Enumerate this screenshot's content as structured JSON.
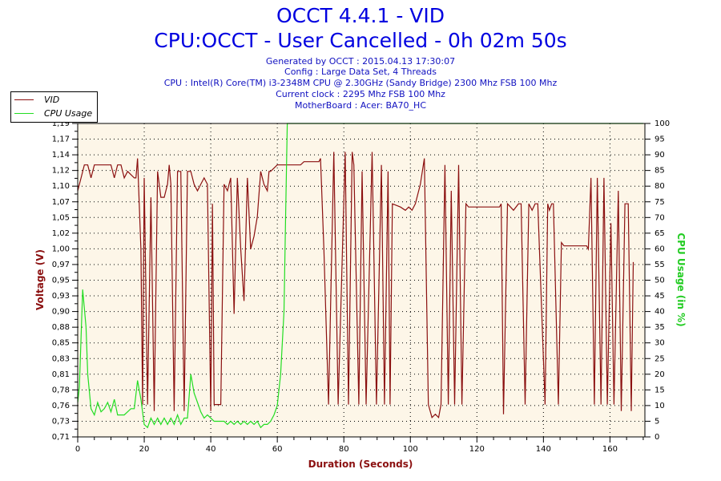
{
  "header": {
    "title": "OCCT 4.4.1 - VID",
    "subtitle": "CPU:OCCT - User Cancelled - 0h 02m 50s",
    "generated": "Generated by OCCT : 2015.04.13 17:30:07",
    "config": "Config : Large Data Set, 4 Threads",
    "cpu": "CPU : Intel(R) Core(TM) i3-2348M CPU @ 2.30GHz (Sandy Bridge) 2300 Mhz FSB 100 Mhz",
    "clock": "Current clock : 2295 Mhz FSB 100 Mhz",
    "motherboard": "MotherBoard : Acer: BA70_HC"
  },
  "colors": {
    "vid": "#8b1010",
    "cpu": "#22dd22",
    "plot_bg": "#fdf6e8",
    "title": "#0000e0"
  },
  "chart_data": {
    "type": "line",
    "xlabel": "Duration (Seconds)",
    "ylabel": "Voltage (V)",
    "y2label": "CPU Usage (in %)",
    "xlim": [
      0,
      170.5
    ],
    "ylim": [
      0.71,
      1.194
    ],
    "y2lim": [
      0,
      100
    ],
    "grid": true,
    "legend": "top-left",
    "x_ticks": [
      "0",
      "20",
      "40",
      "60",
      "80",
      "100",
      "120",
      "140",
      "160"
    ],
    "x_tick_values": [
      0,
      20,
      40,
      60,
      80,
      100,
      120,
      140,
      160
    ],
    "y_ticks": [
      "1,19",
      "1,17",
      "1,14",
      "1,12",
      "1,10",
      "1,07",
      "1,05",
      "1,02",
      "1,00",
      "0,97",
      "0,95",
      "0,93",
      "0,90",
      "0,88",
      "0,85",
      "0,83",
      "0,81",
      "0,78",
      "0,76",
      "0,73",
      "0,71"
    ],
    "y2_ticks": [
      "100",
      "95",
      "90",
      "85",
      "80",
      "75",
      "70",
      "65",
      "60",
      "55",
      "50",
      "45",
      "40",
      "35",
      "30",
      "25",
      "20",
      "15",
      "10",
      "5",
      "0"
    ],
    "series": [
      {
        "name": "VID",
        "axis": "left",
        "points": [
          [
            0,
            1.09
          ],
          [
            1,
            1.11
          ],
          [
            2,
            1.13
          ],
          [
            3,
            1.13
          ],
          [
            4,
            1.11
          ],
          [
            5,
            1.13
          ],
          [
            8,
            1.13
          ],
          [
            10,
            1.13
          ],
          [
            11,
            1.11
          ],
          [
            12,
            1.13
          ],
          [
            13,
            1.13
          ],
          [
            14,
            1.11
          ],
          [
            15,
            1.12
          ],
          [
            17,
            1.11
          ],
          [
            17.5,
            1.11
          ],
          [
            18,
            1.14
          ],
          [
            19,
            1.0
          ],
          [
            19.5,
            0.76
          ],
          [
            20,
            1.11
          ],
          [
            21,
            0.76
          ],
          [
            22,
            1.08
          ],
          [
            23,
            0.75
          ],
          [
            24,
            1.12
          ],
          [
            25,
            1.08
          ],
          [
            26,
            1.08
          ],
          [
            27,
            1.1
          ],
          [
            27.5,
            1.13
          ],
          [
            28,
            1.1
          ],
          [
            29,
            0.75
          ],
          [
            30,
            1.12
          ],
          [
            31,
            1.12
          ],
          [
            32,
            0.75
          ],
          [
            33,
            1.12
          ],
          [
            34,
            1.12
          ],
          [
            35,
            1.1
          ],
          [
            36,
            1.09
          ],
          [
            37,
            1.1
          ],
          [
            38,
            1.11
          ],
          [
            39,
            1.1
          ],
          [
            40,
            0.75
          ],
          [
            40.5,
            1.07
          ],
          [
            41,
            0.76
          ],
          [
            42,
            0.76
          ],
          [
            43,
            0.76
          ],
          [
            44,
            1.1
          ],
          [
            45,
            1.09
          ],
          [
            46,
            1.11
          ],
          [
            47,
            0.9
          ],
          [
            48,
            1.11
          ],
          [
            49,
            1.0
          ],
          [
            50,
            0.92
          ],
          [
            51,
            1.11
          ],
          [
            52,
            1.0
          ],
          [
            53,
            1.02
          ],
          [
            54,
            1.05
          ],
          [
            55,
            1.12
          ],
          [
            56,
            1.1
          ],
          [
            57,
            1.09
          ],
          [
            57.5,
            1.12
          ],
          [
            58,
            1.12
          ],
          [
            60,
            1.13
          ],
          [
            65,
            1.13
          ],
          [
            67,
            1.13
          ],
          [
            68,
            1.135
          ],
          [
            72.5,
            1.135
          ],
          [
            73,
            1.14
          ],
          [
            74,
            1.0
          ],
          [
            75.4,
            0.76
          ],
          [
            77,
            1.15
          ],
          [
            78.3,
            0.76
          ],
          [
            80.4,
            1.15
          ],
          [
            81.4,
            0.76
          ],
          [
            82.5,
            1.15
          ],
          [
            83,
            1.13
          ],
          [
            84.5,
            0.76
          ],
          [
            85.5,
            1.12
          ],
          [
            86.7,
            0.76
          ],
          [
            88.5,
            1.15
          ],
          [
            89.8,
            0.76
          ],
          [
            91.3,
            1.13
          ],
          [
            92.2,
            0.76
          ],
          [
            93.3,
            1.12
          ],
          [
            93.9,
            0.76
          ],
          [
            94.6,
            1.07
          ],
          [
            97,
            1.065
          ],
          [
            98.5,
            1.06
          ],
          [
            99.5,
            1.065
          ],
          [
            100.5,
            1.06
          ],
          [
            101.5,
            1.07
          ],
          [
            103,
            1.1
          ],
          [
            104.2,
            1.14
          ],
          [
            105.4,
            0.76
          ],
          [
            106.5,
            0.74
          ],
          [
            107.5,
            0.745
          ],
          [
            108.5,
            0.74
          ],
          [
            109.2,
            0.76
          ],
          [
            110.4,
            1.13
          ],
          [
            111.4,
            0.76
          ],
          [
            112.3,
            1.09
          ],
          [
            113.3,
            0.76
          ],
          [
            114.5,
            1.13
          ],
          [
            115.5,
            0.76
          ],
          [
            116.7,
            1.07
          ],
          [
            117.5,
            1.065
          ],
          [
            126.8,
            1.065
          ],
          [
            127.3,
            1.07
          ],
          [
            128,
            0.745
          ],
          [
            129.2,
            1.07
          ],
          [
            131,
            1.06
          ],
          [
            132.5,
            1.07
          ],
          [
            133.3,
            1.07
          ],
          [
            134.5,
            0.76
          ],
          [
            135.6,
            1.07
          ],
          [
            136.6,
            1.06
          ],
          [
            137.5,
            1.07
          ],
          [
            138.3,
            1.07
          ],
          [
            140.5,
            0.76
          ],
          [
            141.3,
            1.07
          ],
          [
            141.8,
            1.06
          ],
          [
            142.5,
            1.07
          ],
          [
            143,
            1.07
          ],
          [
            144.5,
            0.76
          ],
          [
            145.4,
            1.01
          ],
          [
            146.2,
            1.005
          ],
          [
            153,
            1.005
          ],
          [
            153.5,
            1.0
          ],
          [
            154.3,
            1.11
          ],
          [
            155.3,
            0.76
          ],
          [
            156.2,
            1.11
          ],
          [
            157.3,
            0.76
          ],
          [
            158.2,
            1.11
          ],
          [
            159.2,
            0.76
          ],
          [
            160.3,
            1.04
          ],
          [
            161.2,
            0.76
          ],
          [
            162.5,
            1.09
          ],
          [
            163.4,
            0.75
          ],
          [
            164.5,
            1.07
          ],
          [
            165.5,
            1.07
          ],
          [
            166.4,
            0.75
          ],
          [
            167,
            0.98
          ]
        ]
      },
      {
        "name": "CPU Usage",
        "axis": "right",
        "points": [
          [
            0,
            11
          ],
          [
            0.5,
            16
          ],
          [
            1.5,
            47
          ],
          [
            2.5,
            35
          ],
          [
            3,
            20
          ],
          [
            4,
            9
          ],
          [
            5,
            7
          ],
          [
            6,
            11
          ],
          [
            7,
            8
          ],
          [
            8,
            9
          ],
          [
            9,
            11
          ],
          [
            10,
            8
          ],
          [
            11,
            12
          ],
          [
            12,
            7
          ],
          [
            13,
            7
          ],
          [
            14,
            7
          ],
          [
            15,
            8
          ],
          [
            16,
            9
          ],
          [
            17,
            9
          ],
          [
            18,
            18
          ],
          [
            19,
            12
          ],
          [
            20,
            4
          ],
          [
            21,
            3
          ],
          [
            22,
            6
          ],
          [
            23,
            4
          ],
          [
            24,
            6
          ],
          [
            25,
            4
          ],
          [
            26,
            6
          ],
          [
            27,
            4
          ],
          [
            28,
            6
          ],
          [
            29,
            4
          ],
          [
            30,
            7
          ],
          [
            31,
            4
          ],
          [
            32,
            6
          ],
          [
            33,
            6
          ],
          [
            34,
            20
          ],
          [
            35,
            14
          ],
          [
            36,
            11
          ],
          [
            37,
            8
          ],
          [
            38,
            6
          ],
          [
            39,
            7
          ],
          [
            40,
            6
          ],
          [
            41,
            5
          ],
          [
            42,
            5
          ],
          [
            43,
            5
          ],
          [
            44,
            5
          ],
          [
            45,
            4
          ],
          [
            46,
            5
          ],
          [
            47,
            4
          ],
          [
            48,
            5
          ],
          [
            49,
            4
          ],
          [
            50,
            5
          ],
          [
            51,
            4
          ],
          [
            52,
            5
          ],
          [
            53,
            4
          ],
          [
            54,
            5
          ],
          [
            55,
            3
          ],
          [
            56,
            4
          ],
          [
            57,
            4
          ],
          [
            58,
            5
          ],
          [
            59,
            7
          ],
          [
            60,
            10
          ],
          [
            61,
            20
          ],
          [
            62,
            40
          ],
          [
            62.5,
            70
          ],
          [
            63,
            100
          ],
          [
            170,
            100
          ]
        ]
      }
    ]
  }
}
